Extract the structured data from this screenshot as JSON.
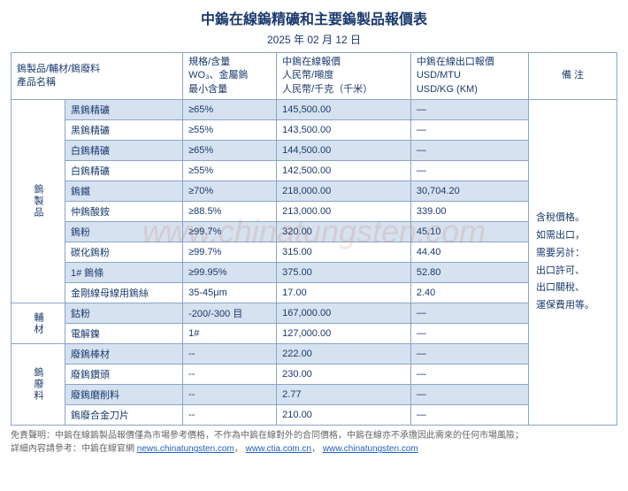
{
  "title": "中鎢在線鎢精礦和主要鎢製品報價表",
  "date": "2025 年 02 月 12 日",
  "watermark": "www.chinatungsten.com",
  "colors": {
    "border": "#8aa5c7",
    "text": "#1a3a6e",
    "alt_row": "#d6e2f0",
    "background": "#ffffff",
    "link": "#2060c0"
  },
  "columns": {
    "product": {
      "l1": "鎢製品/輔材/鎢廢料",
      "l2": "產品名稱"
    },
    "spec": {
      "l1": "規格/含量",
      "l2": "WO₃、金屬鎢",
      "l3": "最小含量"
    },
    "price_rmb": {
      "l1": "中鎢在線報價",
      "l2": "人民幣/噸度",
      "l3": "人民幣/千克（千米）"
    },
    "price_usd": {
      "l1": "中鎢在線出口報價",
      "l2": "USD/MTU",
      "l3": "USD/KG (KM)"
    },
    "notes": "備 注"
  },
  "notes_text": "含稅價格。\n如需出口，\n需要另計：\n出口許可、\n出口關稅、\n運保費用等。",
  "groups": [
    {
      "label": "鎢製品",
      "rows": [
        {
          "name": "黑鎢精礦",
          "spec": "≥65%",
          "rmb": "145,500.00",
          "usd": "—"
        },
        {
          "name": "黑鎢精礦",
          "spec": "≥55%",
          "rmb": "143,500.00",
          "usd": "—"
        },
        {
          "name": "白鎢精礦",
          "spec": "≥65%",
          "rmb": "144,500.00",
          "usd": "—"
        },
        {
          "name": "白鎢精礦",
          "spec": "≥55%",
          "rmb": "142,500.00",
          "usd": "—"
        },
        {
          "name": "鎢鐵",
          "spec": "≥70%",
          "rmb": "218,000.00",
          "usd": "30,704.20"
        },
        {
          "name": "仲鎢酸銨",
          "spec": "≥88.5%",
          "rmb": "213,000.00",
          "usd": "339.00"
        },
        {
          "name": "鎢粉",
          "spec": "≥99.7%",
          "rmb": "320.00",
          "usd": "45.10"
        },
        {
          "name": "碳化鎢粉",
          "spec": "≥99.7%",
          "rmb": "315.00",
          "usd": "44.40"
        },
        {
          "name": "1#  鎢條",
          "spec": "≥99.95%",
          "rmb": "375.00",
          "usd": "52.80"
        },
        {
          "name": "金剛線母線用鎢絲",
          "spec": "35-45μm",
          "rmb": "17.00",
          "usd": "2.40"
        }
      ]
    },
    {
      "label": "輔材",
      "rows": [
        {
          "name": "鈷粉",
          "spec": "-200/-300 目",
          "rmb": "167,000.00",
          "usd": "—"
        },
        {
          "name": "電解鎳",
          "spec": "1#",
          "rmb": "127,000.00",
          "usd": "—"
        }
      ]
    },
    {
      "label": "鎢廢料",
      "rows": [
        {
          "name": "廢鎢棒材",
          "spec": "--",
          "rmb": "222.00",
          "usd": "—"
        },
        {
          "name": "廢鎢鑽頭",
          "spec": "--",
          "rmb": "230.00",
          "usd": "—"
        },
        {
          "name": "廢鎢磨削料",
          "spec": "--",
          "rmb": "2.77",
          "usd": "—"
        },
        {
          "name": "鎢廢合金刀片",
          "spec": "--",
          "rmb": "210.00",
          "usd": "—"
        }
      ]
    }
  ],
  "footer": {
    "line1_a": "免責聲明：中鎢在線鎢製品報價僅為市場參考價格，不作為中鎢在線對外的合同價格，中鎢在線亦不承擔因此需來的任何市場風險；",
    "line2_a": "詳細內容請參考：中鎢在線官網 ",
    "link1": "news.chinatungsten.com",
    "link2": "www.ctia.com.cn",
    "link3": "www.chinatungsten.com",
    "sep": "，"
  }
}
